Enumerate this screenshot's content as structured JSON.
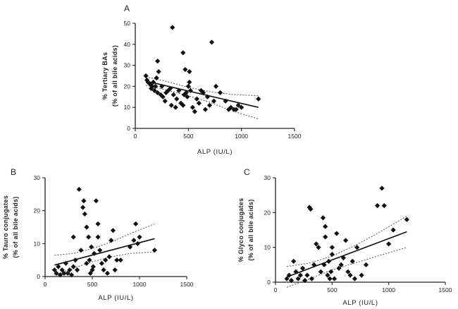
{
  "chart_data": [
    {
      "id": "A",
      "type": "scatter",
      "panel_label": "A",
      "xlabel": "ALP (IU/L)",
      "ylabel_line1": "% Tertiary BAs",
      "ylabel_line2": "(% of all bile acids)",
      "xlim": [
        0,
        1500
      ],
      "ylim": [
        0,
        50
      ],
      "xticks": [
        0,
        500,
        1000,
        1500
      ],
      "yticks": [
        0,
        10,
        20,
        30,
        40,
        50
      ],
      "points": [
        [
          100,
          25
        ],
        [
          110,
          23
        ],
        [
          120,
          22
        ],
        [
          140,
          21
        ],
        [
          150,
          19
        ],
        [
          160,
          20
        ],
        [
          170,
          22
        ],
        [
          180,
          18
        ],
        [
          190,
          20
        ],
        [
          200,
          24
        ],
        [
          210,
          17
        ],
        [
          220,
          27
        ],
        [
          240,
          16
        ],
        [
          250,
          20
        ],
        [
          260,
          15
        ],
        [
          280,
          13
        ],
        [
          290,
          17
        ],
        [
          310,
          18
        ],
        [
          330,
          19
        ],
        [
          340,
          11
        ],
        [
          360,
          16
        ],
        [
          380,
          10
        ],
        [
          390,
          14
        ],
        [
          410,
          18
        ],
        [
          430,
          12
        ],
        [
          450,
          11
        ],
        [
          460,
          16
        ],
        [
          480,
          17
        ],
        [
          490,
          15
        ],
        [
          500,
          20
        ],
        [
          510,
          22
        ],
        [
          520,
          18
        ],
        [
          540,
          10
        ],
        [
          560,
          8
        ],
        [
          580,
          14
        ],
        [
          600,
          12
        ],
        [
          620,
          18
        ],
        [
          640,
          17
        ],
        [
          660,
          9
        ],
        [
          680,
          15
        ],
        [
          700,
          11
        ],
        [
          740,
          13
        ],
        [
          760,
          20
        ],
        [
          800,
          17
        ],
        [
          850,
          13
        ],
        [
          880,
          9
        ],
        [
          900,
          10
        ],
        [
          930,
          9
        ],
        [
          950,
          9
        ],
        [
          970,
          11
        ],
        [
          1000,
          10
        ],
        [
          1160,
          14
        ],
        [
          210,
          32
        ],
        [
          350,
          48
        ],
        [
          450,
          36
        ],
        [
          470,
          28
        ],
        [
          510,
          27
        ],
        [
          720,
          41
        ]
      ],
      "fit": {
        "x": [
          100,
          1160
        ],
        "y": [
          22.5,
          10
        ]
      },
      "ci_upper": [
        [
          100,
          24.5
        ],
        [
          300,
          22.3
        ],
        [
          500,
          19.5
        ],
        [
          700,
          17.5
        ],
        [
          900,
          16.2
        ],
        [
          1160,
          15.5
        ]
      ],
      "ci_lower": [
        [
          100,
          20.5
        ],
        [
          300,
          18.2
        ],
        [
          500,
          15.5
        ],
        [
          700,
          12.5
        ],
        [
          900,
          8.5
        ],
        [
          1160,
          4.5
        ]
      ]
    },
    {
      "id": "B",
      "type": "scatter",
      "panel_label": "B",
      "xlabel": "ALP (IU/L)",
      "ylabel_line1": "% Tauro conjugates",
      "ylabel_line2": "(% of all bile acids)",
      "xlim": [
        0,
        1500
      ],
      "ylim": [
        0,
        30
      ],
      "xticks": [
        0,
        500,
        1000,
        1500
      ],
      "yticks": [
        0,
        10,
        20,
        30
      ],
      "points": [
        [
          100,
          2
        ],
        [
          120,
          1
        ],
        [
          140,
          3
        ],
        [
          160,
          0.5
        ],
        [
          180,
          2
        ],
        [
          200,
          1
        ],
        [
          220,
          4
        ],
        [
          240,
          1
        ],
        [
          260,
          2
        ],
        [
          280,
          0.5
        ],
        [
          300,
          3
        ],
        [
          320,
          5
        ],
        [
          340,
          2
        ],
        [
          360,
          26.5
        ],
        [
          380,
          8
        ],
        [
          400,
          21
        ],
        [
          410,
          23
        ],
        [
          420,
          19
        ],
        [
          440,
          4
        ],
        [
          460,
          12
        ],
        [
          470,
          5
        ],
        [
          480,
          1
        ],
        [
          490,
          9
        ],
        [
          500,
          2
        ],
        [
          510,
          3
        ],
        [
          520,
          7
        ],
        [
          540,
          23
        ],
        [
          560,
          16
        ],
        [
          580,
          8
        ],
        [
          600,
          4
        ],
        [
          620,
          2
        ],
        [
          640,
          5
        ],
        [
          660,
          1
        ],
        [
          680,
          6
        ],
        [
          700,
          11
        ],
        [
          720,
          14
        ],
        [
          740,
          2
        ],
        [
          760,
          5
        ],
        [
          800,
          5
        ],
        [
          900,
          9
        ],
        [
          940,
          11
        ],
        [
          960,
          16
        ],
        [
          980,
          10
        ],
        [
          1000,
          12
        ],
        [
          1160,
          8
        ],
        [
          300,
          12
        ],
        [
          560,
          12
        ],
        [
          440,
          15
        ]
      ],
      "fit": {
        "x": [
          100,
          1160
        ],
        "y": [
          3.5,
          11.5
        ]
      },
      "ci_upper": [
        [
          100,
          6.5
        ],
        [
          300,
          7.0
        ],
        [
          500,
          8.5
        ],
        [
          700,
          10.5
        ],
        [
          900,
          13.0
        ],
        [
          1160,
          16.0
        ]
      ],
      "ci_lower": [
        [
          100,
          0.5
        ],
        [
          300,
          2.5
        ],
        [
          500,
          4.5
        ],
        [
          700,
          6.0
        ],
        [
          900,
          7.0
        ],
        [
          1160,
          7.5
        ]
      ]
    },
    {
      "id": "C",
      "type": "scatter",
      "panel_label": "C",
      "xlabel": "ALP (IU/L)",
      "ylabel_line1": "% Glyco conjugates",
      "ylabel_line2": "(% of all bile acids)",
      "xlim": [
        0,
        1500
      ],
      "ylim": [
        0,
        30
      ],
      "xticks": [
        0,
        500,
        1000,
        1500
      ],
      "yticks": [
        0,
        10,
        20,
        30
      ],
      "points": [
        [
          100,
          1
        ],
        [
          120,
          2
        ],
        [
          140,
          0.5
        ],
        [
          160,
          6
        ],
        [
          180,
          3
        ],
        [
          200,
          1
        ],
        [
          220,
          2
        ],
        [
          240,
          4
        ],
        [
          260,
          0.5
        ],
        [
          280,
          2
        ],
        [
          300,
          21.5
        ],
        [
          310,
          21
        ],
        [
          320,
          1
        ],
        [
          340,
          5
        ],
        [
          360,
          11
        ],
        [
          380,
          10
        ],
        [
          400,
          3
        ],
        [
          420,
          18.5
        ],
        [
          430,
          5
        ],
        [
          440,
          13
        ],
        [
          460,
          2
        ],
        [
          470,
          6
        ],
        [
          480,
          1
        ],
        [
          490,
          3
        ],
        [
          500,
          8
        ],
        [
          520,
          1
        ],
        [
          540,
          14
        ],
        [
          560,
          4
        ],
        [
          600,
          7
        ],
        [
          620,
          12
        ],
        [
          640,
          3
        ],
        [
          660,
          2
        ],
        [
          680,
          6
        ],
        [
          700,
          1
        ],
        [
          720,
          10
        ],
        [
          760,
          2
        ],
        [
          800,
          5
        ],
        [
          900,
          22
        ],
        [
          940,
          27
        ],
        [
          960,
          22
        ],
        [
          1000,
          11
        ],
        [
          1040,
          15
        ],
        [
          1160,
          18
        ],
        [
          440,
          16
        ],
        [
          500,
          10
        ],
        [
          580,
          5
        ]
      ],
      "fit": {
        "x": [
          100,
          1160
        ],
        "y": [
          1.5,
          14.5
        ]
      },
      "ci_upper": [
        [
          100,
          4.5
        ],
        [
          300,
          5.5
        ],
        [
          500,
          7.5
        ],
        [
          700,
          10.5
        ],
        [
          900,
          14.0
        ],
        [
          1160,
          19.0
        ]
      ],
      "ci_lower": [
        [
          100,
          -1.5
        ],
        [
          300,
          1.0
        ],
        [
          500,
          3.5
        ],
        [
          700,
          5.5
        ],
        [
          900,
          7.5
        ],
        [
          1160,
          10.0
        ]
      ]
    }
  ]
}
